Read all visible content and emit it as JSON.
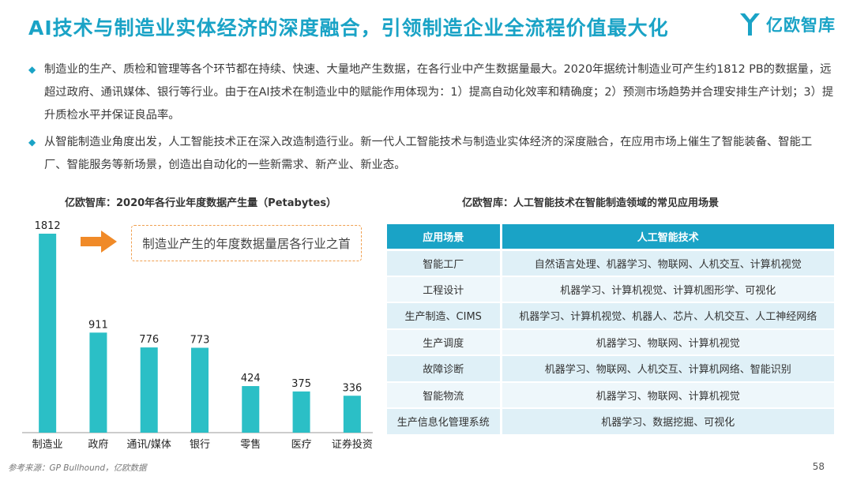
{
  "header": {
    "title": "AI技术与制造业实体经济的深度融合，引领制造企业全流程价值最大化",
    "logo_text": "亿欧智库"
  },
  "bullets": [
    "制造业的生产、质检和管理等各个环节都在持续、快速、大量地产生数据，在各行业中产生数据量最大。2020年据统计制造业可产生约1812 PB的数据量，远超过政府、通讯媒体、银行等行业。由于在AI技术在制造业中的赋能作用体现为：1）提高自动化效率和精确度；2）预测市场趋势并合理安排生产计划；3）提升质检水平并保证良品率。",
    "从智能制造业角度出发，人工智能技术正在深入改造制造行业。新一代人工智能技术与制造业实体经济的深度融合，在应用市场上催生了智能装备、智能工厂、智能服务等新场景，创造出自动化的一些新需求、新产业、新业态。"
  ],
  "chart_data": {
    "type": "bar",
    "title": "亿欧智库：2020年各行业年度数据产生量（Petabytes）",
    "categories": [
      "制造业",
      "政府",
      "通讯/媒体",
      "银行",
      "零售",
      "医疗",
      "证券投资"
    ],
    "values": [
      1812,
      911,
      776,
      773,
      424,
      375,
      336
    ],
    "xlabel": "",
    "ylabel": "",
    "ylim": [
      0,
      1812
    ],
    "grid": false,
    "bar_color": "#2bbfc6",
    "annotation": "制造业产生的年度数据量居各行业之首"
  },
  "table": {
    "caption": "亿欧智库：人工智能技术在智能制造领域的常见应用场景",
    "headers": [
      "应用场景",
      "人工智能技术"
    ],
    "rows": [
      [
        "智能工厂",
        "自然语言处理、机器学习、物联网、人机交互、计算机视觉"
      ],
      [
        "工程设计",
        "机器学习、计算机视觉、计算机图形学、可视化"
      ],
      [
        "生产制造、CIMS",
        "机器学习、计算机视觉、机器人、芯片、人机交互、人工神经网络"
      ],
      [
        "生产调度",
        "机器学习、物联网、计算机视觉"
      ],
      [
        "故障诊断",
        "机器学习、物联网、人机交互、计算机网络、智能识别"
      ],
      [
        "智能物流",
        "机器学习、物联网、计算机视觉"
      ],
      [
        "生产信息化管理系统",
        "机器学习、数据挖掘、可视化"
      ]
    ]
  },
  "footer": {
    "source": "参考来源：GP Bullhound，亿欧数据",
    "page": "58"
  },
  "colors": {
    "accent": "#1aa3c6",
    "callout_border": "#f0a050",
    "arrow": "#f08a28"
  }
}
